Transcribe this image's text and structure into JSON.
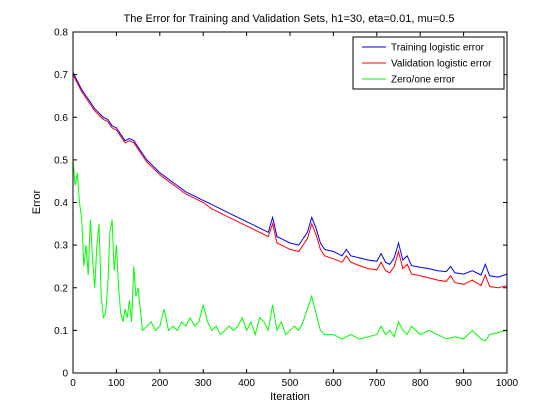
{
  "chart_data": {
    "type": "line",
    "title": "The Error for Training and Validation Sets, h1=30, eta=0.01, mu=0.5",
    "xlabel": "Iteration",
    "ylabel": "Error",
    "xlim": [
      0,
      1000
    ],
    "ylim": [
      0,
      0.8
    ],
    "xticks": [
      0,
      100,
      200,
      300,
      400,
      500,
      600,
      700,
      800,
      900,
      1000
    ],
    "yticks": [
      0,
      0.1,
      0.2,
      0.3,
      0.4,
      0.5,
      0.6,
      0.7,
      0.8
    ],
    "xtick_labels": [
      "0",
      "100",
      "200",
      "300",
      "400",
      "500",
      "600",
      "700",
      "800",
      "900",
      "1000"
    ],
    "ytick_labels": [
      "0",
      "0.1",
      "0.2",
      "0.3",
      "0.4",
      "0.5",
      "0.6",
      "0.7",
      "0.8"
    ],
    "grid": false,
    "legend_position": "top-right",
    "series": [
      {
        "name": "Training logistic error",
        "color": "#0000ff",
        "x": [
          0,
          10,
          20,
          30,
          40,
          50,
          60,
          70,
          80,
          90,
          100,
          110,
          120,
          130,
          140,
          150,
          160,
          170,
          180,
          190,
          200,
          220,
          240,
          260,
          280,
          300,
          320,
          340,
          360,
          380,
          400,
          420,
          440,
          450,
          460,
          470,
          480,
          500,
          520,
          540,
          550,
          560,
          570,
          580,
          600,
          620,
          630,
          640,
          660,
          680,
          700,
          710,
          720,
          730,
          740,
          750,
          760,
          770,
          780,
          800,
          820,
          840,
          860,
          870,
          880,
          900,
          920,
          940,
          950,
          960,
          980,
          1000
        ],
        "y": [
          0.705,
          0.685,
          0.665,
          0.65,
          0.635,
          0.62,
          0.61,
          0.6,
          0.595,
          0.58,
          0.575,
          0.56,
          0.545,
          0.55,
          0.545,
          0.53,
          0.515,
          0.5,
          0.49,
          0.48,
          0.47,
          0.455,
          0.44,
          0.425,
          0.415,
          0.405,
          0.395,
          0.385,
          0.375,
          0.365,
          0.355,
          0.345,
          0.335,
          0.33,
          0.365,
          0.32,
          0.315,
          0.305,
          0.3,
          0.33,
          0.365,
          0.34,
          0.305,
          0.29,
          0.285,
          0.275,
          0.29,
          0.275,
          0.27,
          0.265,
          0.262,
          0.28,
          0.26,
          0.255,
          0.27,
          0.305,
          0.265,
          0.275,
          0.252,
          0.248,
          0.245,
          0.24,
          0.238,
          0.25,
          0.235,
          0.232,
          0.24,
          0.23,
          0.255,
          0.228,
          0.225,
          0.232
        ]
      },
      {
        "name": "Validation logistic error",
        "color": "#ff0000",
        "x": [
          0,
          10,
          20,
          30,
          40,
          50,
          60,
          70,
          80,
          90,
          100,
          110,
          120,
          130,
          140,
          150,
          160,
          170,
          180,
          190,
          200,
          220,
          240,
          260,
          280,
          300,
          320,
          340,
          360,
          380,
          400,
          420,
          440,
          450,
          460,
          470,
          480,
          500,
          520,
          540,
          550,
          560,
          570,
          580,
          600,
          620,
          630,
          640,
          660,
          680,
          700,
          710,
          720,
          730,
          740,
          750,
          760,
          770,
          780,
          800,
          820,
          840,
          860,
          870,
          880,
          900,
          920,
          940,
          950,
          960,
          980,
          1000
        ],
        "y": [
          0.7,
          0.68,
          0.66,
          0.645,
          0.63,
          0.615,
          0.605,
          0.595,
          0.59,
          0.575,
          0.57,
          0.555,
          0.54,
          0.545,
          0.54,
          0.525,
          0.51,
          0.495,
          0.485,
          0.475,
          0.465,
          0.45,
          0.435,
          0.42,
          0.41,
          0.4,
          0.385,
          0.375,
          0.365,
          0.355,
          0.345,
          0.335,
          0.325,
          0.32,
          0.35,
          0.305,
          0.3,
          0.29,
          0.285,
          0.315,
          0.35,
          0.325,
          0.29,
          0.275,
          0.268,
          0.26,
          0.275,
          0.26,
          0.252,
          0.245,
          0.242,
          0.26,
          0.24,
          0.235,
          0.25,
          0.285,
          0.245,
          0.255,
          0.232,
          0.228,
          0.223,
          0.218,
          0.215,
          0.228,
          0.212,
          0.208,
          0.218,
          0.205,
          0.23,
          0.203,
          0.2,
          0.205
        ]
      },
      {
        "name": "Zero/one error",
        "color": "#00ff00",
        "x": [
          0,
          5,
          10,
          15,
          20,
          25,
          30,
          35,
          40,
          45,
          50,
          55,
          60,
          65,
          70,
          75,
          80,
          85,
          90,
          95,
          100,
          105,
          110,
          115,
          120,
          125,
          130,
          135,
          140,
          145,
          150,
          155,
          160,
          170,
          180,
          190,
          200,
          210,
          220,
          230,
          240,
          250,
          260,
          270,
          280,
          290,
          300,
          310,
          320,
          330,
          340,
          350,
          360,
          370,
          380,
          390,
          400,
          410,
          420,
          430,
          440,
          450,
          460,
          470,
          480,
          490,
          500,
          510,
          520,
          530,
          540,
          550,
          560,
          570,
          580,
          590,
          600,
          620,
          640,
          660,
          680,
          700,
          710,
          720,
          730,
          740,
          750,
          760,
          770,
          780,
          800,
          820,
          840,
          860,
          880,
          900,
          920,
          940,
          950,
          960,
          980,
          1000
        ],
        "y": [
          0.5,
          0.44,
          0.47,
          0.4,
          0.36,
          0.25,
          0.3,
          0.23,
          0.36,
          0.27,
          0.2,
          0.3,
          0.35,
          0.18,
          0.13,
          0.14,
          0.2,
          0.33,
          0.36,
          0.24,
          0.3,
          0.2,
          0.14,
          0.12,
          0.15,
          0.13,
          0.17,
          0.12,
          0.25,
          0.18,
          0.2,
          0.15,
          0.1,
          0.11,
          0.12,
          0.1,
          0.11,
          0.15,
          0.1,
          0.11,
          0.1,
          0.12,
          0.11,
          0.13,
          0.11,
          0.12,
          0.16,
          0.12,
          0.1,
          0.11,
          0.09,
          0.1,
          0.11,
          0.1,
          0.11,
          0.13,
          0.1,
          0.12,
          0.09,
          0.13,
          0.12,
          0.1,
          0.16,
          0.1,
          0.12,
          0.09,
          0.1,
          0.11,
          0.1,
          0.12,
          0.15,
          0.18,
          0.14,
          0.1,
          0.09,
          0.09,
          0.09,
          0.08,
          0.09,
          0.08,
          0.085,
          0.09,
          0.11,
          0.09,
          0.1,
          0.085,
          0.12,
          0.1,
          0.09,
          0.11,
          0.09,
          0.1,
          0.09,
          0.08,
          0.085,
          0.08,
          0.1,
          0.08,
          0.075,
          0.09,
          0.095,
          0.1
        ]
      }
    ]
  }
}
